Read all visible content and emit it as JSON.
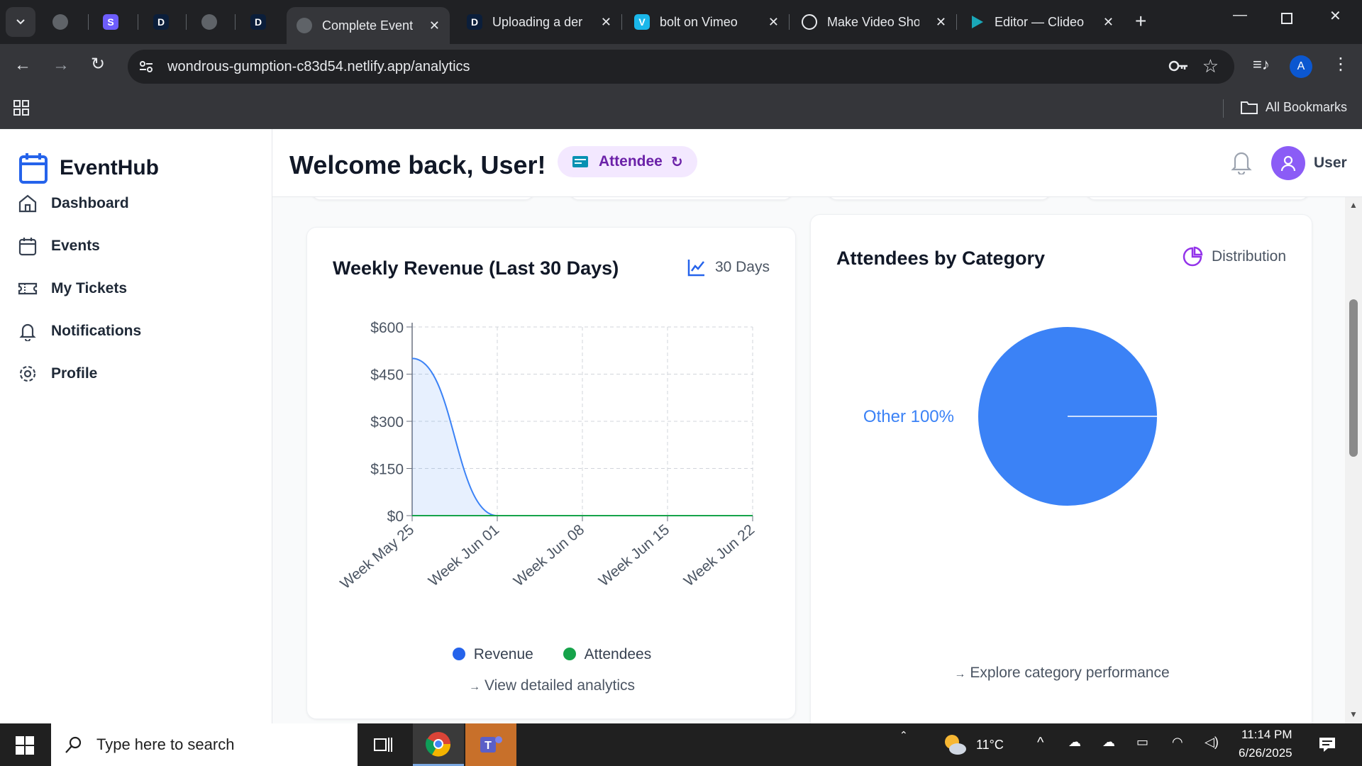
{
  "browser": {
    "tabs": [
      {
        "label": "",
        "icon": "globe-icon"
      },
      {
        "label": "",
        "icon": "s-logo-icon"
      },
      {
        "label": "",
        "icon": "d-logo-icon"
      },
      {
        "label": "",
        "icon": "globe-icon"
      },
      {
        "label": "",
        "icon": "d-logo-icon"
      },
      {
        "label": "Complete Event",
        "icon": "globe-icon",
        "active": true
      },
      {
        "label": "Uploading a der",
        "icon": "d-logo-icon"
      },
      {
        "label": "bolt on Vimeo",
        "icon": "vimeo-icon"
      },
      {
        "label": "Make Video Sho",
        "icon": "openai-icon"
      },
      {
        "label": "Editor — Clideo",
        "icon": "play-icon"
      }
    ],
    "url": "wondrous-gumption-c83d54.netlify.app/analytics",
    "profile_initial": "A",
    "bookmarks_label": "All Bookmarks"
  },
  "app": {
    "brand": "EventHub",
    "nav": [
      {
        "label": "Dashboard",
        "icon": "home-icon"
      },
      {
        "label": "Events",
        "icon": "calendar-icon"
      },
      {
        "label": "My Tickets",
        "icon": "ticket-icon"
      },
      {
        "label": "Notifications",
        "icon": "bell-icon"
      },
      {
        "label": "Profile",
        "icon": "gear-icon"
      }
    ],
    "welcome": "Welcome back, User!",
    "role": "Attendee",
    "user_name": "User"
  },
  "revenue_card": {
    "title": "Weekly Revenue (Last 30 Days)",
    "period": "30 Days",
    "link": "View detailed analytics"
  },
  "category_card": {
    "title": "Attendees by Category",
    "mode": "Distribution",
    "link": "Explore category performance"
  },
  "chart_data": [
    {
      "type": "area",
      "title": "Weekly Revenue (Last 30 Days)",
      "categories": [
        "Week May 25",
        "Week Jun 01",
        "Week Jun 08",
        "Week Jun 15",
        "Week Jun 22"
      ],
      "series": [
        {
          "name": "Revenue",
          "values": [
            500,
            0,
            0,
            0,
            0
          ],
          "color": "#3b82f6"
        },
        {
          "name": "Attendees",
          "values": [
            0,
            0,
            0,
            0,
            0
          ],
          "color": "#16a34a"
        }
      ],
      "yticks": [
        "$0",
        "$150",
        "$300",
        "$450",
        "$600"
      ],
      "ylim": [
        0,
        600
      ],
      "grid": true,
      "legend": "bottom"
    },
    {
      "type": "pie",
      "title": "Attendees by Category",
      "slices": [
        {
          "label": "Other",
          "value": 100,
          "display": "Other 100%",
          "color": "#3b82f6"
        }
      ]
    }
  ],
  "taskbar": {
    "search_placeholder": "Type here to search",
    "weather": "11°C",
    "time": "11:14 PM",
    "date": "6/26/2025"
  }
}
